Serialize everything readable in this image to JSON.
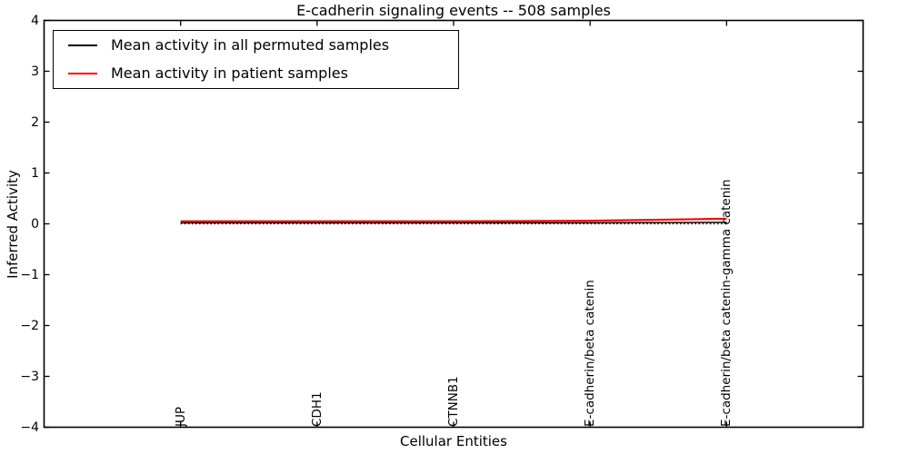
{
  "chart_data": {
    "type": "line",
    "title": "E-cadherin signaling events -- 508 samples",
    "xlabel": "Cellular Entities",
    "ylabel": "Inferred Activity",
    "categories": [
      "JUP",
      "CDH1",
      "CTNNB1",
      "E-cadherin/beta catenin",
      "E-cadherin/beta catenin-gamma catenin"
    ],
    "series": [
      {
        "name": "Mean activity in all permuted samples",
        "color": "#000000",
        "values": [
          0.02,
          0.02,
          0.02,
          0.02,
          0.03
        ]
      },
      {
        "name": "Mean activity in patient samples",
        "color": "#ff0000",
        "values": [
          0.05,
          0.05,
          0.05,
          0.06,
          0.1
        ]
      }
    ],
    "reference_line": {
      "y": 0,
      "style": "dotted",
      "color": "#000000"
    },
    "ylim": [
      -4,
      4
    ],
    "yticks": [
      4,
      3,
      2,
      1,
      0,
      -1,
      -2,
      -3,
      -4
    ],
    "grid": false,
    "legend_position": "upper left",
    "axis_color": "#000000",
    "background": "#ffffff"
  }
}
